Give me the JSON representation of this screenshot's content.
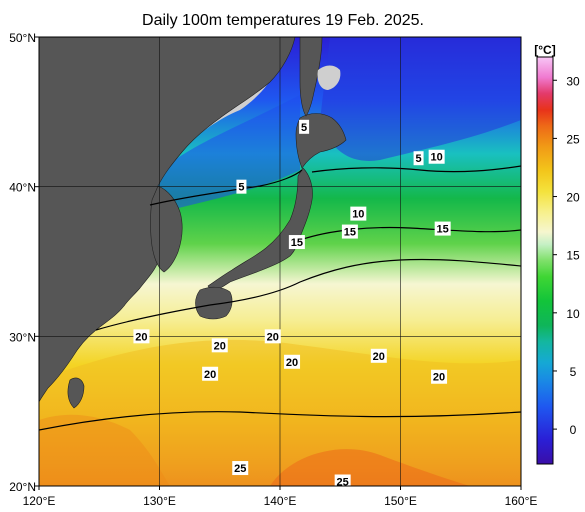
{
  "title": "Daily 100m temperatures 19 Feb. 2025.",
  "axes": {
    "x_ticks": [
      {
        "value": 120,
        "label": "120°E"
      },
      {
        "value": 130,
        "label": "130°E"
      },
      {
        "value": 140,
        "label": "140°E"
      },
      {
        "value": 150,
        "label": "150°E"
      },
      {
        "value": 160,
        "label": "160°E"
      }
    ],
    "y_ticks": [
      {
        "value": 50,
        "label": "50°N"
      },
      {
        "value": 40,
        "label": "40°N"
      },
      {
        "value": 30,
        "label": "30°N"
      },
      {
        "value": 20,
        "label": "20°N"
      }
    ],
    "lon_range": [
      120,
      160
    ],
    "lat_range": [
      20,
      50
    ],
    "grid": true
  },
  "colorbar": {
    "unit": "[°C]",
    "range": [
      -3,
      32
    ],
    "ticks": [
      "0",
      "5",
      "10",
      "15",
      "20",
      "25",
      "30"
    ],
    "tick_values": [
      0,
      5,
      10,
      15,
      20,
      25,
      30
    ]
  },
  "colors": {
    "land": "#565656",
    "no_data": "#cfcfcf",
    "contour": "#000000"
  },
  "contour_labels": [
    {
      "text": "5",
      "lon": 142.0,
      "lat": 44.0
    },
    {
      "text": "5",
      "lon": 136.8,
      "lat": 40.0
    },
    {
      "text": "5",
      "lon": 151.5,
      "lat": 41.9
    },
    {
      "text": "10",
      "lon": 153.0,
      "lat": 42.0
    },
    {
      "text": "10",
      "lon": 146.5,
      "lat": 38.2
    },
    {
      "text": "15",
      "lon": 141.4,
      "lat": 36.3
    },
    {
      "text": "15",
      "lon": 145.8,
      "lat": 37.0
    },
    {
      "text": "15",
      "lon": 153.5,
      "lat": 37.2
    },
    {
      "text": "20",
      "lon": 128.5,
      "lat": 30.0
    },
    {
      "text": "20",
      "lon": 135.0,
      "lat": 29.4
    },
    {
      "text": "20",
      "lon": 139.4,
      "lat": 30.0
    },
    {
      "text": "20",
      "lon": 141.0,
      "lat": 28.3
    },
    {
      "text": "20",
      "lon": 134.2,
      "lat": 27.5
    },
    {
      "text": "20",
      "lon": 148.2,
      "lat": 28.7
    },
    {
      "text": "20",
      "lon": 153.2,
      "lat": 27.3
    },
    {
      "text": "25",
      "lon": 136.7,
      "lat": 21.2
    },
    {
      "text": "25",
      "lon": 145.2,
      "lat": 20.3
    }
  ]
}
